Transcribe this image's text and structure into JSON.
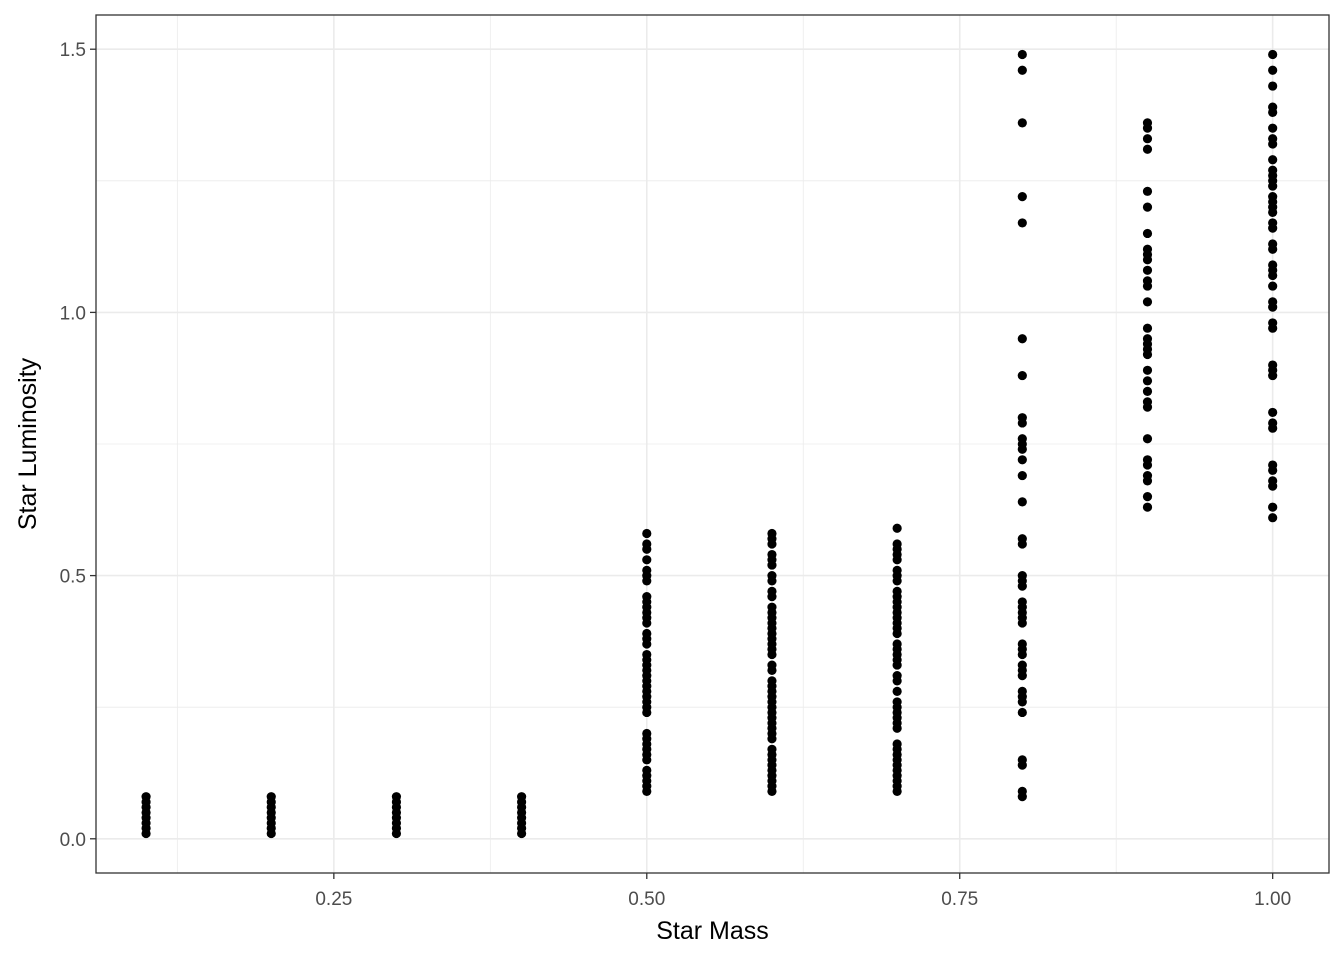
{
  "chart_data": {
    "type": "scatter",
    "title": "",
    "xlabel": "Star Mass",
    "ylabel": "Star Luminosity",
    "xlim": [
      0.06,
      1.045
    ],
    "ylim": [
      -0.065,
      1.565
    ],
    "x_ticks": [
      {
        "value": 0.25,
        "label": "0.25"
      },
      {
        "value": 0.5,
        "label": "0.50"
      },
      {
        "value": 0.75,
        "label": "0.75"
      },
      {
        "value": 1.0,
        "label": "1.00"
      }
    ],
    "x_minor_ticks": [
      0.125,
      0.375,
      0.625,
      0.875
    ],
    "y_ticks": [
      {
        "value": 0.0,
        "label": "0.0"
      },
      {
        "value": 0.5,
        "label": "0.5"
      },
      {
        "value": 1.0,
        "label": "1.0"
      },
      {
        "value": 1.5,
        "label": "1.5"
      }
    ],
    "y_minor_ticks": [
      0.25,
      0.75,
      1.25
    ],
    "grid": true,
    "point_color": "#000000",
    "groups": [
      {
        "x": 0.1,
        "y": [
          0.01,
          0.02,
          0.03,
          0.04,
          0.05,
          0.06,
          0.07,
          0.08
        ]
      },
      {
        "x": 0.2,
        "y": [
          0.01,
          0.02,
          0.03,
          0.04,
          0.05,
          0.06,
          0.07,
          0.08
        ]
      },
      {
        "x": 0.3,
        "y": [
          0.01,
          0.02,
          0.03,
          0.04,
          0.05,
          0.06,
          0.07,
          0.08
        ]
      },
      {
        "x": 0.4,
        "y": [
          0.01,
          0.02,
          0.03,
          0.04,
          0.05,
          0.06,
          0.07,
          0.08
        ]
      },
      {
        "x": 0.5,
        "y": [
          0.09,
          0.1,
          0.11,
          0.12,
          0.13,
          0.15,
          0.16,
          0.17,
          0.18,
          0.19,
          0.2,
          0.24,
          0.25,
          0.26,
          0.27,
          0.28,
          0.29,
          0.3,
          0.31,
          0.32,
          0.33,
          0.34,
          0.35,
          0.37,
          0.38,
          0.39,
          0.41,
          0.42,
          0.43,
          0.44,
          0.45,
          0.46,
          0.49,
          0.5,
          0.51,
          0.53,
          0.55,
          0.56,
          0.58
        ]
      },
      {
        "x": 0.6,
        "y": [
          0.09,
          0.1,
          0.11,
          0.12,
          0.13,
          0.14,
          0.15,
          0.16,
          0.17,
          0.19,
          0.2,
          0.21,
          0.22,
          0.23,
          0.24,
          0.25,
          0.26,
          0.27,
          0.28,
          0.29,
          0.3,
          0.32,
          0.33,
          0.35,
          0.36,
          0.37,
          0.38,
          0.39,
          0.4,
          0.41,
          0.42,
          0.43,
          0.44,
          0.46,
          0.47,
          0.49,
          0.5,
          0.52,
          0.53,
          0.54,
          0.56,
          0.57,
          0.58
        ]
      },
      {
        "x": 0.7,
        "y": [
          0.09,
          0.1,
          0.11,
          0.12,
          0.13,
          0.14,
          0.15,
          0.16,
          0.17,
          0.18,
          0.21,
          0.22,
          0.23,
          0.24,
          0.25,
          0.26,
          0.28,
          0.3,
          0.31,
          0.33,
          0.34,
          0.35,
          0.36,
          0.37,
          0.39,
          0.4,
          0.41,
          0.42,
          0.43,
          0.44,
          0.45,
          0.46,
          0.47,
          0.49,
          0.5,
          0.51,
          0.53,
          0.54,
          0.55,
          0.56,
          0.59
        ]
      },
      {
        "x": 0.8,
        "y": [
          0.08,
          0.09,
          0.14,
          0.15,
          0.24,
          0.26,
          0.27,
          0.28,
          0.31,
          0.32,
          0.33,
          0.35,
          0.36,
          0.37,
          0.41,
          0.42,
          0.43,
          0.44,
          0.45,
          0.48,
          0.49,
          0.5,
          0.56,
          0.57,
          0.64,
          0.69,
          0.72,
          0.74,
          0.75,
          0.76,
          0.79,
          0.8,
          0.88,
          0.95,
          1.17,
          1.22,
          1.36,
          1.46,
          1.49
        ]
      },
      {
        "x": 0.9,
        "y": [
          0.63,
          0.65,
          0.68,
          0.69,
          0.71,
          0.72,
          0.76,
          0.82,
          0.83,
          0.85,
          0.87,
          0.89,
          0.92,
          0.93,
          0.94,
          0.95,
          0.97,
          1.02,
          1.05,
          1.06,
          1.08,
          1.1,
          1.11,
          1.12,
          1.15,
          1.2,
          1.23,
          1.31,
          1.33,
          1.35,
          1.36
        ]
      },
      {
        "x": 1.0,
        "y": [
          0.61,
          0.63,
          0.67,
          0.68,
          0.7,
          0.71,
          0.78,
          0.79,
          0.81,
          0.88,
          0.89,
          0.9,
          0.97,
          0.98,
          1.01,
          1.02,
          1.05,
          1.07,
          1.08,
          1.09,
          1.12,
          1.13,
          1.16,
          1.17,
          1.19,
          1.2,
          1.21,
          1.22,
          1.24,
          1.25,
          1.26,
          1.27,
          1.29,
          1.32,
          1.33,
          1.35,
          1.38,
          1.39,
          1.43,
          1.46,
          1.49
        ]
      }
    ]
  }
}
